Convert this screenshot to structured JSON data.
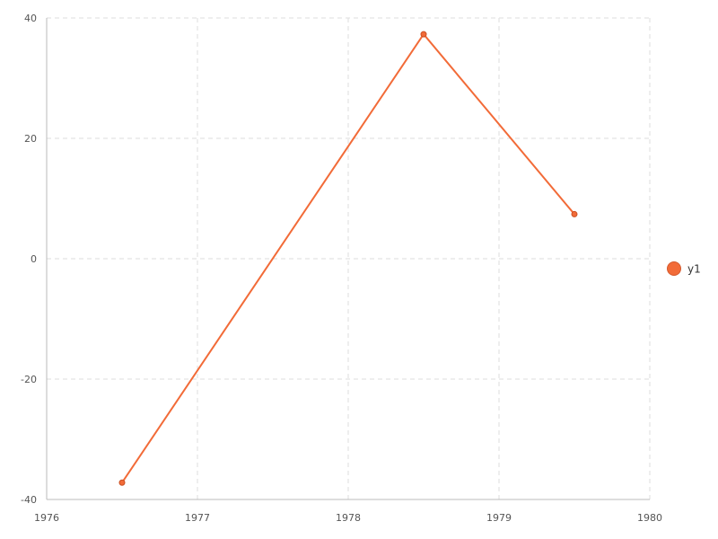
{
  "chart_data": {
    "type": "line",
    "x_ticks": [
      "1976",
      "1977",
      "1978",
      "1979",
      "1980"
    ],
    "y_ticks": [
      "40",
      "20",
      "0",
      "-20",
      "-40"
    ],
    "xlim": [
      1976,
      1980
    ],
    "ylim": [
      -40,
      40
    ],
    "grid": true,
    "legend_position": "right",
    "series": [
      {
        "name": "y1",
        "color": "#f26b38",
        "points": [
          {
            "x": 1976.5,
            "y": -37.2
          },
          {
            "x": 1978.5,
            "y": 37.3
          },
          {
            "x": 1979.5,
            "y": 7.4
          }
        ]
      }
    ]
  }
}
